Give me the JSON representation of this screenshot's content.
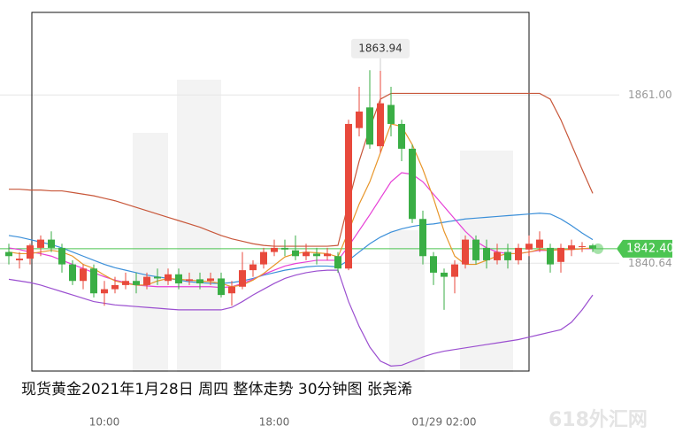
{
  "chart_data": {
    "type": "candlestick",
    "caption": "现货黄金2021年1月28日  周四  整体走势  30分钟图 张尧浠",
    "watermark": "618外汇网",
    "categories": [
      null,
      null,
      null,
      null,
      null,
      null,
      null,
      null,
      null,
      "10:00",
      null,
      null,
      null,
      null,
      null,
      null,
      null,
      null,
      null,
      null,
      null,
      null,
      null,
      null,
      null,
      "18:00",
      null,
      null,
      null,
      null,
      null,
      null,
      null,
      null,
      null,
      null,
      null,
      null,
      null,
      null,
      null,
      "01/29 02:00",
      null,
      null,
      null,
      null,
      null,
      null,
      null,
      null,
      null,
      null,
      null,
      null,
      null,
      null
    ],
    "open": [
      1842,
      1841,
      1841.2,
      1842.5,
      1843.5,
      1842.5,
      1840.5,
      1838.5,
      1840,
      1837,
      1837.5,
      1838,
      1838.5,
      1838,
      1839,
      1838.5,
      1839.3,
      1838.5,
      1838.7,
      1838.5,
      1838.8,
      1837,
      1837.8,
      1839.8,
      1840.5,
      1842,
      1842.5,
      1842.2,
      1841.5,
      1841.8,
      1841.5,
      1841.5,
      1840,
      1857,
      1859.5,
      1854.8,
      1859.8,
      1857.5,
      1854.5,
      1846,
      1841.5,
      1839.5,
      1839,
      1840.5,
      1843.5,
      1842.5,
      1841,
      1842,
      1841,
      1842.3,
      1842.5,
      1842.5,
      1840.8,
      1842.3,
      1842.6,
      1842.8
    ],
    "high": [
      1843,
      1842,
      1843,
      1844,
      1844.5,
      1843,
      1841,
      1840.5,
      1840.5,
      1838.5,
      1839,
      1839.5,
      1839.5,
      1839.5,
      1840,
      1840,
      1840,
      1839.5,
      1839.5,
      1839.5,
      1839.5,
      1838.5,
      1842,
      1841,
      1842.5,
      1843.5,
      1843.5,
      1844,
      1843,
      1842.5,
      1842.5,
      1842,
      1858,
      1862,
      1864,
      1863.94,
      1862,
      1858,
      1855,
      1847,
      1842,
      1840,
      1841,
      1844,
      1844,
      1843.5,
      1843,
      1843,
      1843,
      1844,
      1844.5,
      1843,
      1843,
      1843.5,
      1843.2,
      1843
    ],
    "low": [
      1840.5,
      1840,
      1840.5,
      1841.5,
      1842,
      1839.5,
      1838,
      1837.5,
      1836.5,
      1835.5,
      1837,
      1837.5,
      1837,
      1837.5,
      1838,
      1838,
      1837.5,
      1838,
      1837.5,
      1838,
      1836.5,
      1835.5,
      1837.5,
      1839,
      1840,
      1841.5,
      1841.5,
      1841,
      1841,
      1840.5,
      1841,
      1839.5,
      1839.8,
      1856,
      1854.5,
      1854,
      1856,
      1853,
      1845.5,
      1840.5,
      1838,
      1835,
      1837,
      1840,
      1840.5,
      1840,
      1840.5,
      1840,
      1840.5,
      1841.5,
      1842,
      1839.5,
      1839.5,
      1841.5,
      1842,
      1842
    ],
    "close": [
      1841.5,
      1841.2,
      1842.8,
      1843.5,
      1842.5,
      1840.5,
      1838.5,
      1840,
      1837,
      1837.5,
      1838,
      1838.5,
      1838,
      1839,
      1838.8,
      1839.3,
      1838.2,
      1838.7,
      1838.2,
      1838.8,
      1836.8,
      1837.8,
      1839.8,
      1840.5,
      1842,
      1842.5,
      1842.3,
      1841.5,
      1842,
      1841.5,
      1841.8,
      1840,
      1857.5,
      1859,
      1855,
      1860,
      1857.5,
      1854.5,
      1846,
      1841.5,
      1839.5,
      1839,
      1840.5,
      1843.5,
      1841,
      1841,
      1842,
      1841,
      1842.5,
      1843,
      1843.5,
      1840.5,
      1842.5,
      1842.8,
      1842.7,
      1842.4
    ],
    "up_color": "#e8493c",
    "down_color": "#3aae45",
    "lines": [
      {
        "color": "#c8573a",
        "values": [
          1849.6,
          1849.6,
          1849.5,
          1849.5,
          1849.4,
          1849.4,
          1849.2,
          1849.0,
          1848.8,
          1848.5,
          1848.2,
          1847.8,
          1847.4,
          1847,
          1846.6,
          1846.2,
          1845.8,
          1845.4,
          1845,
          1844.5,
          1844,
          1843.6,
          1843.3,
          1843.0,
          1842.8,
          1842.7,
          1842.7,
          1842.7,
          1842.7,
          1842.7,
          1842.7,
          1842.8,
          1848,
          1853,
          1857,
          1860.5,
          1861.2,
          1861.2,
          1861.2,
          1861.2,
          1861.2,
          1861.2,
          1861.2,
          1861.2,
          1861.2,
          1861.2,
          1861.2,
          1861.2,
          1861.2,
          1861.2,
          1861.2,
          1860.5,
          1858,
          1855,
          1852,
          1849.1
        ]
      },
      {
        "color": "#9b4fd0",
        "values": [
          1838.7,
          1838.5,
          1838.3,
          1838,
          1837.6,
          1837.2,
          1836.8,
          1836.4,
          1836,
          1835.8,
          1835.6,
          1835.5,
          1835.4,
          1835.3,
          1835.2,
          1835.1,
          1835.0,
          1835.0,
          1835.0,
          1835.0,
          1835.0,
          1835.3,
          1836,
          1836.8,
          1837.5,
          1838.2,
          1838.8,
          1839.2,
          1839.5,
          1839.7,
          1839.8,
          1839.8,
          1836,
          1833,
          1830.5,
          1828.8,
          1828.2,
          1828.3,
          1828.8,
          1829.3,
          1829.7,
          1830,
          1830.2,
          1830.4,
          1830.6,
          1830.8,
          1831,
          1831.2,
          1831.4,
          1831.7,
          1832,
          1832.3,
          1832.6,
          1833.5,
          1835,
          1836.8
        ]
      },
      {
        "color": "#3b8fd9",
        "values": [
          1844,
          1843.8,
          1843.5,
          1843.2,
          1842.9,
          1842.5,
          1842,
          1841.5,
          1841,
          1840.5,
          1840.1,
          1839.8,
          1839.5,
          1839.2,
          1839,
          1838.8,
          1838.6,
          1838.4,
          1838.3,
          1838.2,
          1838.2,
          1838.3,
          1838.5,
          1838.8,
          1839.2,
          1839.5,
          1839.8,
          1840,
          1840.2,
          1840.3,
          1840.3,
          1840.2,
          1841,
          1842,
          1843,
          1843.8,
          1844.4,
          1844.8,
          1845.1,
          1845.3,
          1845.4,
          1845.6,
          1845.8,
          1846,
          1846.1,
          1846.2,
          1846.3,
          1846.4,
          1846.5,
          1846.6,
          1846.7,
          1846.6,
          1846,
          1845.2,
          1844.3,
          1843.5
        ]
      },
      {
        "color": "#e63fd6",
        "values": [
          1842.5,
          1842.3,
          1842,
          1841.8,
          1841.5,
          1841,
          1840.5,
          1840,
          1839.5,
          1839,
          1838.6,
          1838.3,
          1838,
          1837.9,
          1837.8,
          1837.8,
          1837.8,
          1837.8,
          1837.8,
          1837.8,
          1837.7,
          1837.8,
          1838.2,
          1838.7,
          1839.3,
          1839.8,
          1840.3,
          1840.6,
          1840.8,
          1841,
          1841,
          1841,
          1842.7,
          1844.6,
          1846.5,
          1848.5,
          1850.5,
          1851.6,
          1851.4,
          1850.5,
          1849,
          1847.5,
          1846,
          1844.5,
          1843.3,
          1842.5,
          1842,
          1841.8,
          1841.8,
          1842,
          1842.2,
          1842.2,
          1842.3,
          1842.3,
          1842.4,
          1842.4
        ]
      },
      {
        "color": "#e8962a",
        "values": [
          1842,
          1841.8,
          1841.8,
          1842,
          1842.2,
          1842,
          1841.5,
          1840.5,
          1840,
          1839.2,
          1838.5,
          1838.2,
          1838,
          1838,
          1838.5,
          1838.8,
          1838.7,
          1838.6,
          1838.5,
          1838.4,
          1838.2,
          1837.8,
          1838,
          1838.6,
          1839.4,
          1840.4,
          1841.4,
          1841.8,
          1842,
          1841.9,
          1841.8,
          1841.4,
          1844.5,
          1847.8,
          1850.5,
          1854,
          1857.5,
          1857.2,
          1855,
          1852,
          1848.5,
          1844.5,
          1841.5,
          1840.5,
          1840.5,
          1841,
          1841.5,
          1841.8,
          1841.8,
          1842,
          1842.3,
          1842.2,
          1842.3,
          1842.3,
          1842.4,
          1842.5
        ]
      }
    ],
    "ylim": [
      1823.2,
      1872.5
    ],
    "yticks": [
      {
        "value": 1861,
        "label": "1861.00"
      },
      {
        "value": 1840.64,
        "label": "1840.64"
      }
    ],
    "last_price": {
      "value": 1842.4,
      "label": "1842.40",
      "color": "#4cc552"
    },
    "annotations": [
      {
        "value": 1863.94,
        "label": "1863.94"
      }
    ]
  }
}
